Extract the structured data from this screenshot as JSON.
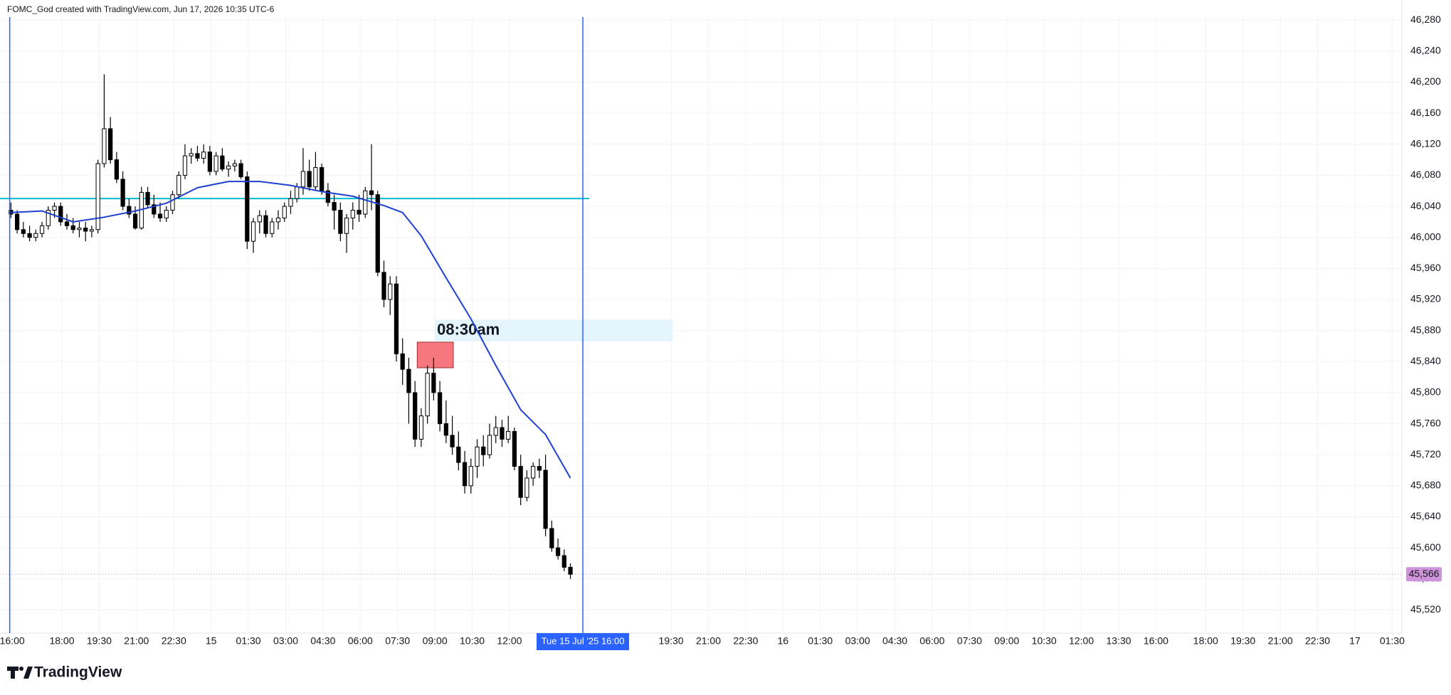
{
  "chart_data": {
    "type": "candlestick",
    "title": "FOMC_God created with TradingView.com, Jun 17, 2026 10:35 UTC-6",
    "brand": "TradingView",
    "xlim": [
      15.51,
      71.89
    ],
    "ylim": [
      45492,
      46282
    ],
    "grid": true,
    "up_color": "#ffffff",
    "down_color": "#000000",
    "xticks": [
      {
        "value": 16,
        "label": "16:00"
      },
      {
        "value": 18,
        "label": "18:00"
      },
      {
        "value": 19.5,
        "label": "19:30"
      },
      {
        "value": 21,
        "label": "21:00"
      },
      {
        "value": 22.5,
        "label": "22:30"
      },
      {
        "value": 24,
        "label": "15"
      },
      {
        "value": 25.5,
        "label": "01:30"
      },
      {
        "value": 27,
        "label": "03:00"
      },
      {
        "value": 28.5,
        "label": "04:30"
      },
      {
        "value": 30,
        "label": "06:00"
      },
      {
        "value": 31.5,
        "label": "07:30"
      },
      {
        "value": 33,
        "label": "09:00"
      },
      {
        "value": 34.5,
        "label": "10:30"
      },
      {
        "value": 36,
        "label": "12:00"
      },
      {
        "value": 42.5,
        "label": "19:30"
      },
      {
        "value": 44,
        "label": "21:00"
      },
      {
        "value": 45.5,
        "label": "22:30"
      },
      {
        "value": 47,
        "label": "16"
      },
      {
        "value": 48.5,
        "label": "01:30"
      },
      {
        "value": 50,
        "label": "03:00"
      },
      {
        "value": 51.5,
        "label": "04:30"
      },
      {
        "value": 53,
        "label": "06:00"
      },
      {
        "value": 54.5,
        "label": "07:30"
      },
      {
        "value": 56,
        "label": "09:00"
      },
      {
        "value": 57.5,
        "label": "10:30"
      },
      {
        "value": 59,
        "label": "12:00"
      },
      {
        "value": 60.5,
        "label": "13:30"
      },
      {
        "value": 62,
        "label": "16:00"
      },
      {
        "value": 64,
        "label": "18:00"
      },
      {
        "value": 65.5,
        "label": "19:30"
      },
      {
        "value": 67,
        "label": "21:00"
      },
      {
        "value": 68.5,
        "label": "22:30"
      },
      {
        "value": 70,
        "label": "17"
      },
      {
        "value": 71.5,
        "label": "01:30"
      }
    ],
    "yticks": [
      {
        "value": 45520,
        "label": "45,520"
      },
      {
        "value": 45560,
        "label": "45,560"
      },
      {
        "value": 45600,
        "label": "45,600"
      },
      {
        "value": 45640,
        "label": "45,640"
      },
      {
        "value": 45680,
        "label": "45,680"
      },
      {
        "value": 45720,
        "label": "45,720"
      },
      {
        "value": 45760,
        "label": "45,760"
      },
      {
        "value": 45800,
        "label": "45,800"
      },
      {
        "value": 45840,
        "label": "45,840"
      },
      {
        "value": 45880,
        "label": "45,880"
      },
      {
        "value": 45920,
        "label": "45,920"
      },
      {
        "value": 45960,
        "label": "45,960"
      },
      {
        "value": 46000,
        "label": "46,000"
      },
      {
        "value": 46040,
        "label": "46,040"
      },
      {
        "value": 46080,
        "label": "46,080"
      },
      {
        "value": 46120,
        "label": "46,120"
      },
      {
        "value": 46160,
        "label": "46,160"
      },
      {
        "value": 46200,
        "label": "46,200"
      },
      {
        "value": 46240,
        "label": "46,240"
      },
      {
        "value": 46280,
        "label": "46,280"
      }
    ],
    "x": [
      15.95,
      16.2,
      16.45,
      16.7,
      16.95,
      17.2,
      17.45,
      17.7,
      17.95,
      18.2,
      18.45,
      18.7,
      18.95,
      19.2,
      19.45,
      19.7,
      19.95,
      20.2,
      20.45,
      20.7,
      20.95,
      21.2,
      21.45,
      21.7,
      21.95,
      22.2,
      22.45,
      22.7,
      22.95,
      23.2,
      23.45,
      23.7,
      23.95,
      24.2,
      24.45,
      24.7,
      24.95,
      25.2,
      25.45,
      25.7,
      25.95,
      26.2,
      26.45,
      26.7,
      26.95,
      27.2,
      27.45,
      27.7,
      27.95,
      28.2,
      28.45,
      28.7,
      28.95,
      29.2,
      29.45,
      29.7,
      29.95,
      30.2,
      30.45,
      30.7,
      30.95,
      31.2,
      31.45,
      31.7,
      31.95,
      32.2,
      32.45,
      32.7,
      32.95,
      33.2,
      33.45,
      33.7,
      33.95,
      34.2,
      34.45,
      34.7,
      34.95,
      35.2,
      35.45,
      35.7,
      35.95,
      36.2,
      36.45,
      36.7,
      36.95,
      37.2,
      37.45,
      37.7,
      37.95,
      38.2,
      38.45
    ],
    "open": [
      46035,
      46030,
      46010,
      46005,
      46000,
      46005,
      46015,
      46035,
      46040,
      46020,
      46015,
      46010,
      46012,
      46008,
      46010,
      46095,
      46140,
      46100,
      46075,
      46040,
      46030,
      46012,
      46058,
      46042,
      46030,
      46025,
      46035,
      46055,
      46080,
      46105,
      46108,
      46102,
      46110,
      46085,
      46105,
      46088,
      46092,
      46095,
      46078,
      45995,
      46020,
      46028,
      46005,
      46020,
      46025,
      46040,
      46050,
      46065,
      46085,
      46065,
      46090,
      46060,
      46045,
      46035,
      46005,
      46025,
      46035,
      46030,
      46060,
      46055,
      45955,
      45920,
      45940,
      45850,
      45830,
      45800,
      45740,
      45770,
      45825,
      45800,
      45760,
      45745,
      45730,
      45710,
      45680,
      45705,
      45730,
      45720,
      45745,
      45755,
      45740,
      45750,
      45705,
      45665,
      45690,
      45705,
      45700,
      45625,
      45600,
      45590,
      45575
    ],
    "high": [
      46045,
      46035,
      46020,
      46015,
      46010,
      46020,
      46040,
      46045,
      46045,
      46030,
      46025,
      46020,
      46020,
      46015,
      46100,
      46210,
      46155,
      46110,
      46085,
      46050,
      46040,
      46065,
      46065,
      46055,
      46045,
      46040,
      46060,
      46085,
      46120,
      46115,
      46118,
      46120,
      46118,
      46110,
      46115,
      46098,
      46100,
      46100,
      46085,
      46025,
      46035,
      46035,
      46025,
      46035,
      46045,
      46060,
      46070,
      46115,
      46100,
      46110,
      46095,
      46070,
      46055,
      46045,
      46030,
      46045,
      46055,
      46065,
      46120,
      46060,
      45970,
      45950,
      45950,
      45870,
      45845,
      45815,
      45780,
      45835,
      45845,
      45815,
      45790,
      45770,
      45750,
      45725,
      45715,
      45740,
      45745,
      45760,
      45770,
      45765,
      45770,
      45755,
      45720,
      45700,
      45710,
      45715,
      45720,
      45635,
      45612,
      45598,
      45580
    ],
    "low": [
      46025,
      46005,
      46000,
      45995,
      45995,
      46000,
      46010,
      46025,
      46015,
      46010,
      46005,
      46000,
      45995,
      46000,
      46005,
      46090,
      46095,
      46070,
      46035,
      46025,
      46010,
      46010,
      46038,
      46025,
      46020,
      46020,
      46030,
      46050,
      46075,
      46095,
      46098,
      46095,
      46080,
      46080,
      46085,
      46078,
      46085,
      46075,
      45985,
      45980,
      46005,
      46000,
      46000,
      46010,
      46020,
      46030,
      46045,
      46055,
      46060,
      46060,
      46055,
      46040,
      46010,
      45995,
      45980,
      46010,
      46020,
      46025,
      46035,
      45950,
      45910,
      45900,
      45840,
      45810,
      45760,
      45730,
      45730,
      45760,
      45790,
      45750,
      45735,
      45720,
      45700,
      45670,
      45670,
      45690,
      45705,
      45715,
      45735,
      45730,
      45735,
      45700,
      45655,
      45660,
      45680,
      45690,
      45615,
      45595,
      45585,
      45570,
      45560
    ],
    "close": [
      46030,
      46010,
      46005,
      46000,
      46005,
      46015,
      46035,
      46040,
      46020,
      46015,
      46010,
      46012,
      46008,
      46010,
      46095,
      46140,
      46100,
      46075,
      46040,
      46030,
      46012,
      46058,
      46042,
      46030,
      46025,
      46035,
      46055,
      46080,
      46105,
      46108,
      46102,
      46110,
      46085,
      46105,
      46088,
      46092,
      46095,
      46078,
      45995,
      46020,
      46028,
      46005,
      46020,
      46025,
      46040,
      46050,
      46065,
      46085,
      46065,
      46090,
      46060,
      46045,
      46035,
      46005,
      46025,
      46035,
      46030,
      46060,
      46055,
      45955,
      45920,
      45940,
      45850,
      45830,
      45800,
      45740,
      45770,
      45825,
      45800,
      45760,
      45745,
      45730,
      45710,
      45680,
      45705,
      45730,
      45720,
      45745,
      45755,
      45740,
      45750,
      45705,
      45665,
      45690,
      45705,
      45700,
      45625,
      45600,
      45590,
      45575,
      45566
    ],
    "moving_average": {
      "color": "#1e40d0",
      "x": [
        15.95,
        17.2,
        18.45,
        19.7,
        20.95,
        22.2,
        23.45,
        24.7,
        25.95,
        27.2,
        28.45,
        29.7,
        30.95,
        31.7,
        32.45,
        33.45,
        34.45,
        35.45,
        36.45,
        37.45,
        38.45
      ],
      "values": [
        46032,
        46034,
        46020,
        46026,
        46034,
        46044,
        46064,
        46072,
        46072,
        46067,
        46059,
        46053,
        46041,
        46032,
        46002,
        45948,
        45895,
        45835,
        45778,
        45746,
        45690
      ]
    },
    "hline": {
      "y": 46050,
      "x_end": 39.21,
      "color": "#00bcd4"
    },
    "vlines": [
      {
        "x": 15.9,
        "color": "#2962ff"
      },
      {
        "x": 38.95,
        "color": "#2962ff"
      }
    ],
    "rectangle": {
      "x": [
        32.29,
        33.74
      ],
      "y": [
        45832,
        45865
      ],
      "color": "#f7777e"
    },
    "zone": {
      "x": [
        33.0,
        42.56
      ],
      "y": [
        45866,
        45894
      ],
      "color": "#e3f4fb",
      "text": "08:30am"
    },
    "crosshair": {
      "x": 38.95,
      "label": "Tue 15 Jul '25   16:00",
      "color": "#2962ff"
    },
    "last_price": {
      "value": 45566,
      "label": "45,566",
      "color": "#ce93d8"
    }
  }
}
